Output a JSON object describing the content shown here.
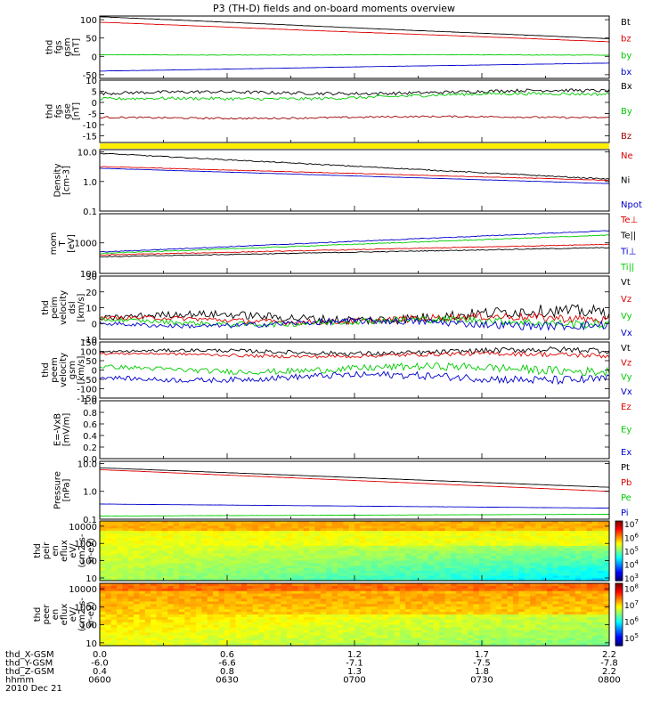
{
  "chart_data": {
    "type": "line",
    "title": "P3 (TH-D) fields and on-board moments overview",
    "date_label": "2010 Dec 21",
    "xaxis": {
      "rows": [
        {
          "label": "thd_X-GSM",
          "values": [
            "0.0",
            "0.6",
            "1.2",
            "1.7",
            "2.2"
          ]
        },
        {
          "label": "thd_Y-GSM",
          "values": [
            "-6.0",
            "-6.6",
            "-7.1",
            "-7.5",
            "-7.8"
          ]
        },
        {
          "label": "thd_Z-GSM",
          "values": [
            "0.4",
            "0.8",
            "1.3",
            "1.8",
            "2.2"
          ]
        },
        {
          "label": "hhmm",
          "values": [
            "0600",
            "0630",
            "0700",
            "0730",
            "0800"
          ]
        }
      ]
    },
    "panels": [
      {
        "id": "fgs",
        "ylabel": [
          "thd",
          "fgs",
          "gsm",
          "[nT]"
        ],
        "scale": "linear",
        "ylim": [
          -60,
          110
        ],
        "ticks": [
          "100",
          "50",
          "0",
          "-50"
        ],
        "tick_values": [
          100,
          50,
          0,
          -50
        ],
        "series": [
          {
            "name": "Bt",
            "color": "#000000",
            "start": 108,
            "end": 48,
            "noise": 0.3
          },
          {
            "name": "bz",
            "color": "#dd0000",
            "start": 93,
            "end": 40,
            "noise": 0.3
          },
          {
            "name": "by",
            "color": "#00cc00",
            "start": 4,
            "end": 4,
            "noise": 0.6
          },
          {
            "name": "bx",
            "color": "#0000cc",
            "start": -40,
            "end": -18,
            "noise": 0.3
          }
        ]
      },
      {
        "id": "fgs-dsl",
        "ylabel": [
          "thd",
          "fgs",
          "gse",
          "[nT]"
        ],
        "scale": "linear",
        "ylim": [
          -18,
          10
        ],
        "ticks": [
          "10",
          "5",
          "0",
          "-5",
          "-10",
          "-15"
        ],
        "tick_values": [
          10,
          5,
          0,
          -5,
          -10,
          -15
        ],
        "series": [
          {
            "name": "Bx",
            "color": "#000000",
            "start": 4,
            "end": 5,
            "noise": 0.7
          },
          {
            "name": "By",
            "color": "#00cc00",
            "start": 1,
            "end": 4,
            "noise": 0.7
          },
          {
            "name": "Bz",
            "color": "#a00000",
            "start": -7,
            "end": -6.5,
            "noise": 0.4
          }
        ]
      },
      {
        "id": "density",
        "ylabel": [
          "Density",
          "[cm-3]"
        ],
        "scale": "log",
        "ylim": [
          0.1,
          12
        ],
        "ticks": [
          "10.0",
          "1.0",
          "0.1"
        ],
        "tick_values": [
          10,
          1,
          0.1
        ],
        "series": [
          {
            "name": "Ne",
            "color": "#dd0000",
            "start": 3.2,
            "end": 1.1,
            "noise": 0.02
          },
          {
            "name": "Ni",
            "color": "#000000",
            "start": 9,
            "end": 1.2,
            "noise": 0.04
          },
          {
            "name": "Npot",
            "color": "#0000cc",
            "start": 2.8,
            "end": 0.85,
            "noise": 0.01
          }
        ]
      },
      {
        "id": "mom-temp",
        "ylabel": [
          "mom",
          "T",
          "[eV]"
        ],
        "scale": "log",
        "ylim": [
          100,
          9000
        ],
        "ticks": [
          "1000",
          "100"
        ],
        "tick_values": [
          1000,
          100
        ],
        "series": [
          {
            "name": "Te⊥",
            "color": "#dd0000",
            "start": 400,
            "end": 900,
            "noise": 0.03
          },
          {
            "name": "Te||",
            "color": "#000000",
            "start": 350,
            "end": 700,
            "noise": 0.03
          },
          {
            "name": "Ti⊥",
            "color": "#0000cc",
            "start": 500,
            "end": 2500,
            "noise": 0.03
          },
          {
            "name": "Ti||",
            "color": "#00cc00",
            "start": 450,
            "end": 1800,
            "noise": 0.03
          }
        ]
      },
      {
        "id": "peim",
        "ylabel": [
          "thd",
          "peim",
          "velocity",
          "dsl",
          "[km/s]"
        ],
        "scale": "linear",
        "ylim": [
          -10,
          30
        ],
        "ticks": [
          "30",
          "20",
          "10",
          "0",
          "-10"
        ],
        "tick_values": [
          30,
          20,
          10,
          0,
          -10
        ],
        "series": [
          {
            "name": "Vt",
            "color": "#000000",
            "start": 3,
            "end": 6,
            "noise": 3
          },
          {
            "name": "Vz",
            "color": "#dd0000",
            "start": 2,
            "end": 3,
            "noise": 2
          },
          {
            "name": "Vy",
            "color": "#00cc00",
            "start": 1,
            "end": 1,
            "noise": 2
          },
          {
            "name": "Vx",
            "color": "#0000cc",
            "start": 0,
            "end": 0,
            "noise": 2
          }
        ]
      },
      {
        "id": "peem",
        "ylabel": [
          "thd",
          "peem",
          "velocity",
          "gsm",
          "[km/s]"
        ],
        "scale": "linear",
        "ylim": [
          -150,
          150
        ],
        "ticks": [
          "150",
          "100",
          "50",
          "0",
          "-50",
          "-100",
          "-150"
        ],
        "tick_values": [
          150,
          100,
          50,
          0,
          -50,
          -100,
          -150
        ],
        "series": [
          {
            "name": "Vt",
            "color": "#000000",
            "start": 95,
            "end": 100,
            "noise": 12
          },
          {
            "name": "Vz",
            "color": "#dd0000",
            "start": 80,
            "end": 80,
            "noise": 10
          },
          {
            "name": "Vy",
            "color": "#00cc00",
            "start": 5,
            "end": 5,
            "noise": 18
          },
          {
            "name": "Vx",
            "color": "#0000cc",
            "start": -40,
            "end": -40,
            "noise": 18
          }
        ]
      },
      {
        "id": "efield",
        "ylabel": [
          "E=-VxB",
          "[mV/m]"
        ],
        "scale": "linear",
        "ylim": [
          0,
          1
        ],
        "ticks": [
          "1.0",
          "0.8",
          "0.6",
          "0.4",
          "0.2",
          "0.0"
        ],
        "tick_values": [
          1,
          0.8,
          0.6,
          0.4,
          0.2,
          0
        ],
        "series": [
          {
            "name": "Ez",
            "color": "#dd0000",
            "values": []
          },
          {
            "name": "Ey",
            "color": "#00cc00",
            "values": []
          },
          {
            "name": "Ex",
            "color": "#0000cc",
            "values": []
          }
        ]
      },
      {
        "id": "pressure",
        "ylabel": [
          "Pressure",
          "[nPa]"
        ],
        "scale": "log",
        "ylim": [
          0.1,
          12
        ],
        "ticks": [
          "10.0",
          "1.0",
          "0.1"
        ],
        "tick_values": [
          10,
          1,
          0.1
        ],
        "series": [
          {
            "name": "Pt",
            "color": "#000000",
            "start": 7,
            "end": 1.4,
            "noise": 0.005
          },
          {
            "name": "Pb",
            "color": "#dd0000",
            "start": 6,
            "end": 1.0,
            "noise": 0.005
          },
          {
            "name": "Pe",
            "color": "#00cc00",
            "start": 0.13,
            "end": 0.15,
            "noise": 0.01
          },
          {
            "name": "Pi",
            "color": "#0000cc",
            "start": 0.35,
            "end": 0.25,
            "noise": 0.005
          }
        ]
      },
      {
        "id": "peir-spec",
        "type": "heatmap",
        "ylabel": [
          "thd",
          "peir",
          "en",
          "eflux",
          "eV/",
          "(cm2-s-",
          "sr-eV)"
        ],
        "ticks": [
          "10000",
          "1000",
          "100",
          "10"
        ],
        "tick_values": [
          10000,
          1000,
          100,
          10
        ],
        "ylim": [
          7,
          20000
        ],
        "colorbar": {
          "ticks": [
            "10^7",
            "10^6",
            "10^5",
            "10^4",
            "10^3"
          ],
          "tick_values": [
            7,
            6,
            5,
            4,
            3
          ],
          "range": [
            2.8,
            7.2
          ]
        }
      },
      {
        "id": "peer-spec",
        "type": "heatmap",
        "ylabel": [
          "thd",
          "peer",
          "en",
          "eflux",
          "eV/",
          "(cm2-s-",
          "sr-eV)"
        ],
        "ticks": [
          "10000",
          "1000",
          "100",
          "10"
        ],
        "tick_values": [
          10000,
          1000,
          100,
          10
        ],
        "ylim": [
          7,
          20000
        ],
        "colorbar": {
          "ticks": [
            "10^8",
            "10^7",
            "10^6",
            "10^5"
          ],
          "tick_values": [
            8,
            7,
            6,
            5
          ],
          "range": [
            4.5,
            8.3
          ]
        }
      }
    ]
  }
}
